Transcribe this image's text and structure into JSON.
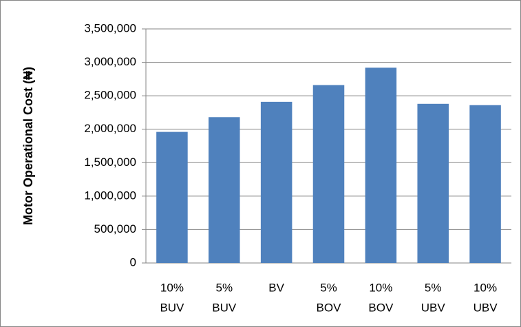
{
  "chart_data": {
    "type": "bar",
    "y_label": "Motor Operational Cost (₦)",
    "categories": [
      [
        "10%",
        "BUV"
      ],
      [
        "5%",
        "BUV"
      ],
      [
        "BV"
      ],
      [
        "5%",
        "BOV"
      ],
      [
        "10%",
        "BOV"
      ],
      [
        "5%",
        "UBV"
      ],
      [
        "10%",
        "UBV"
      ]
    ],
    "values": [
      1960000,
      2180000,
      2410000,
      2660000,
      2920000,
      2380000,
      2360000
    ],
    "color": "#4f81bd",
    "ylim": [
      0,
      3500000
    ],
    "yticks": [
      0,
      {
        "value": 500000,
        "label": "500,000"
      },
      {
        "value": 1000000,
        "label": "1,000,000"
      },
      {
        "value": 1500000,
        "label": "1,500,000"
      },
      {
        "value": 2000000,
        "label": "2,000,000"
      },
      {
        "value": 2500000,
        "label": "2,500,000"
      },
      {
        "value": 3000000,
        "label": "3,000,000"
      },
      {
        "value": 3500000,
        "label": "3,500,000"
      }
    ],
    "grid": true
  }
}
